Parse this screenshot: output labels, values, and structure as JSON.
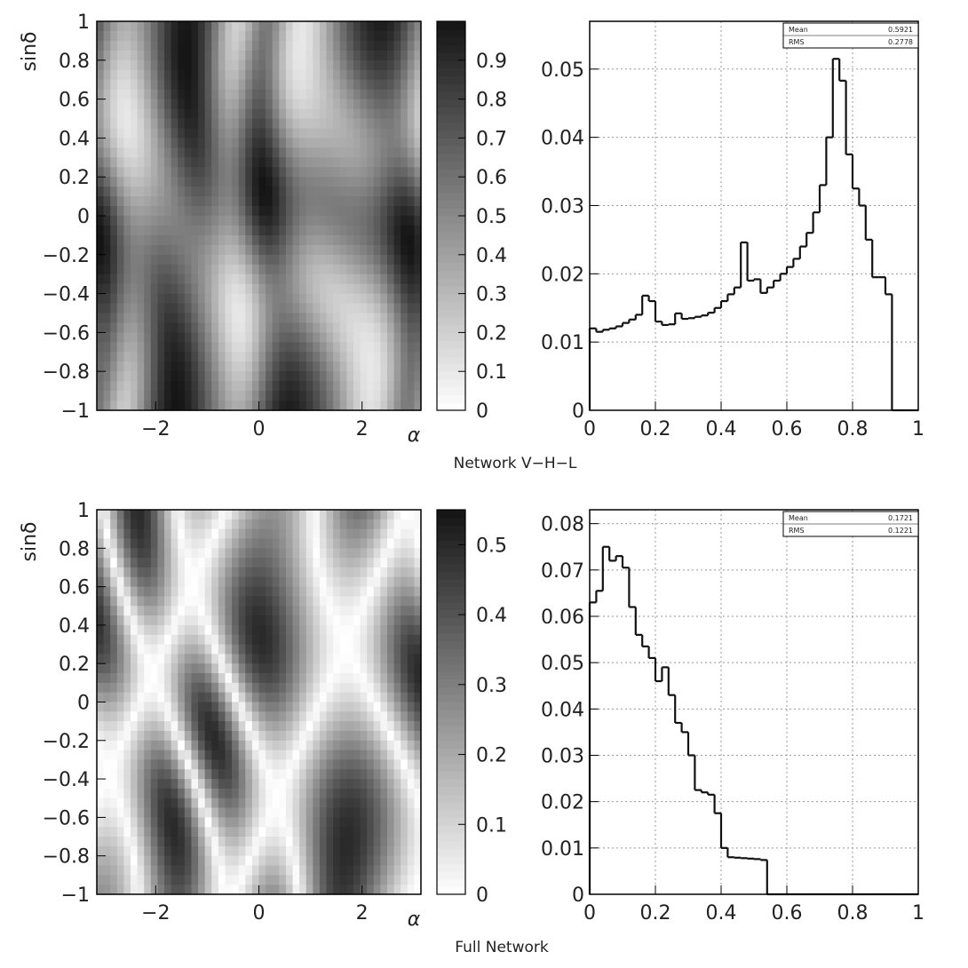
{
  "colors": {
    "axis": "#000000",
    "hist_line": "#111111",
    "grid": "#999999",
    "map_low": "#ffffff",
    "map_high": "#111111"
  },
  "chart_data": [
    {
      "type": "heatmap",
      "xlabel": "α",
      "ylabel": "sinδ",
      "xlim": [
        -3.14159,
        3.14159
      ],
      "ylim": [
        -1,
        1
      ],
      "x_ticks": [
        "−2",
        "0",
        "2"
      ],
      "y_ticks": [
        "−1",
        "−0.8",
        "−0.6",
        "−0.4",
        "−0.2",
        "0",
        "0.2",
        "0.4",
        "0.6",
        "0.8",
        "1"
      ],
      "colorbar": {
        "range": [
          0,
          1.0
        ],
        "ticks": [
          "0",
          "0.1",
          "0.2",
          "0.3",
          "0.4",
          "0.5",
          "0.6",
          "0.7",
          "0.8",
          "0.9"
        ],
        "tick_values": [
          0,
          0.1,
          0.2,
          0.3,
          0.4,
          0.5,
          0.6,
          0.7,
          0.8,
          0.9
        ]
      },
      "grid": false
    },
    {
      "type": "bar",
      "style": "step-histogram",
      "caption": "Network V−H−L",
      "xlim": [
        0,
        1
      ],
      "ylim": [
        0,
        0.057
      ],
      "x_ticks": [
        "0",
        "0.2",
        "0.4",
        "0.6",
        "0.8",
        "1"
      ],
      "x_tick_values": [
        0,
        0.2,
        0.4,
        0.6,
        0.8,
        1
      ],
      "y_ticks": [
        "0",
        "0.01",
        "0.02",
        "0.03",
        "0.04",
        "0.05"
      ],
      "y_tick_values": [
        0,
        0.01,
        0.02,
        0.03,
        0.04,
        0.05
      ],
      "bin_width": 0.02,
      "values": [
        0.012,
        0.0115,
        0.0118,
        0.012,
        0.0123,
        0.0128,
        0.0133,
        0.014,
        0.0168,
        0.016,
        0.013,
        0.0125,
        0.0126,
        0.0142,
        0.0134,
        0.0135,
        0.0137,
        0.0139,
        0.0143,
        0.015,
        0.016,
        0.017,
        0.018,
        0.0246,
        0.019,
        0.0192,
        0.0172,
        0.018,
        0.019,
        0.02,
        0.021,
        0.0222,
        0.024,
        0.026,
        0.029,
        0.033,
        0.04,
        0.0515,
        0.0483,
        0.0375,
        0.0325,
        0.03,
        0.025,
        0.0195,
        0.0195,
        0.017,
        0,
        0,
        0,
        0
      ],
      "stats": {
        "mean_label": "Mean",
        "mean_value": "0.5921",
        "rms_label": "RMS",
        "rms_value": "0.2778"
      },
      "grid": true
    },
    {
      "type": "heatmap",
      "xlabel": "α",
      "ylabel": "sinδ",
      "xlim": [
        -3.14159,
        3.14159
      ],
      "ylim": [
        -1,
        1
      ],
      "x_ticks": [
        "−2",
        "0",
        "2"
      ],
      "y_ticks": [
        "−1",
        "−0.8",
        "−0.6",
        "−0.4",
        "−0.2",
        "0",
        "0.2",
        "0.4",
        "0.6",
        "0.8",
        "1"
      ],
      "colorbar": {
        "range": [
          0,
          0.55
        ],
        "ticks": [
          "0",
          "0.1",
          "0.2",
          "0.3",
          "0.4",
          "0.5"
        ],
        "tick_values": [
          0,
          0.1,
          0.2,
          0.3,
          0.4,
          0.5
        ]
      },
      "grid": false
    },
    {
      "type": "bar",
      "style": "step-histogram",
      "caption": "Full Network",
      "xlim": [
        0,
        1
      ],
      "ylim": [
        0,
        0.083
      ],
      "x_ticks": [
        "0",
        "0.2",
        "0.4",
        "0.6",
        "0.8",
        "1"
      ],
      "x_tick_values": [
        0,
        0.2,
        0.4,
        0.6,
        0.8,
        1
      ],
      "y_ticks": [
        "0",
        "0.01",
        "0.02",
        "0.03",
        "0.04",
        "0.05",
        "0.06",
        "0.07",
        "0.08"
      ],
      "y_tick_values": [
        0,
        0.01,
        0.02,
        0.03,
        0.04,
        0.05,
        0.06,
        0.07,
        0.08
      ],
      "bin_width": 0.02,
      "values": [
        0.063,
        0.0655,
        0.075,
        0.072,
        0.073,
        0.0705,
        0.062,
        0.056,
        0.0535,
        0.051,
        0.046,
        0.049,
        0.043,
        0.037,
        0.035,
        0.03,
        0.0225,
        0.022,
        0.0215,
        0.0175,
        0.01,
        0.008,
        0.0079,
        0.0078,
        0.0077,
        0.0076,
        0.0074,
        0,
        0,
        0,
        0,
        0,
        0,
        0,
        0,
        0,
        0,
        0,
        0,
        0,
        0,
        0,
        0,
        0,
        0,
        0,
        0,
        0,
        0,
        0
      ],
      "stats": {
        "mean_label": "Mean",
        "mean_value": "0.1721",
        "rms_label": "RMS",
        "rms_value": "0.1221"
      },
      "grid": true
    }
  ]
}
